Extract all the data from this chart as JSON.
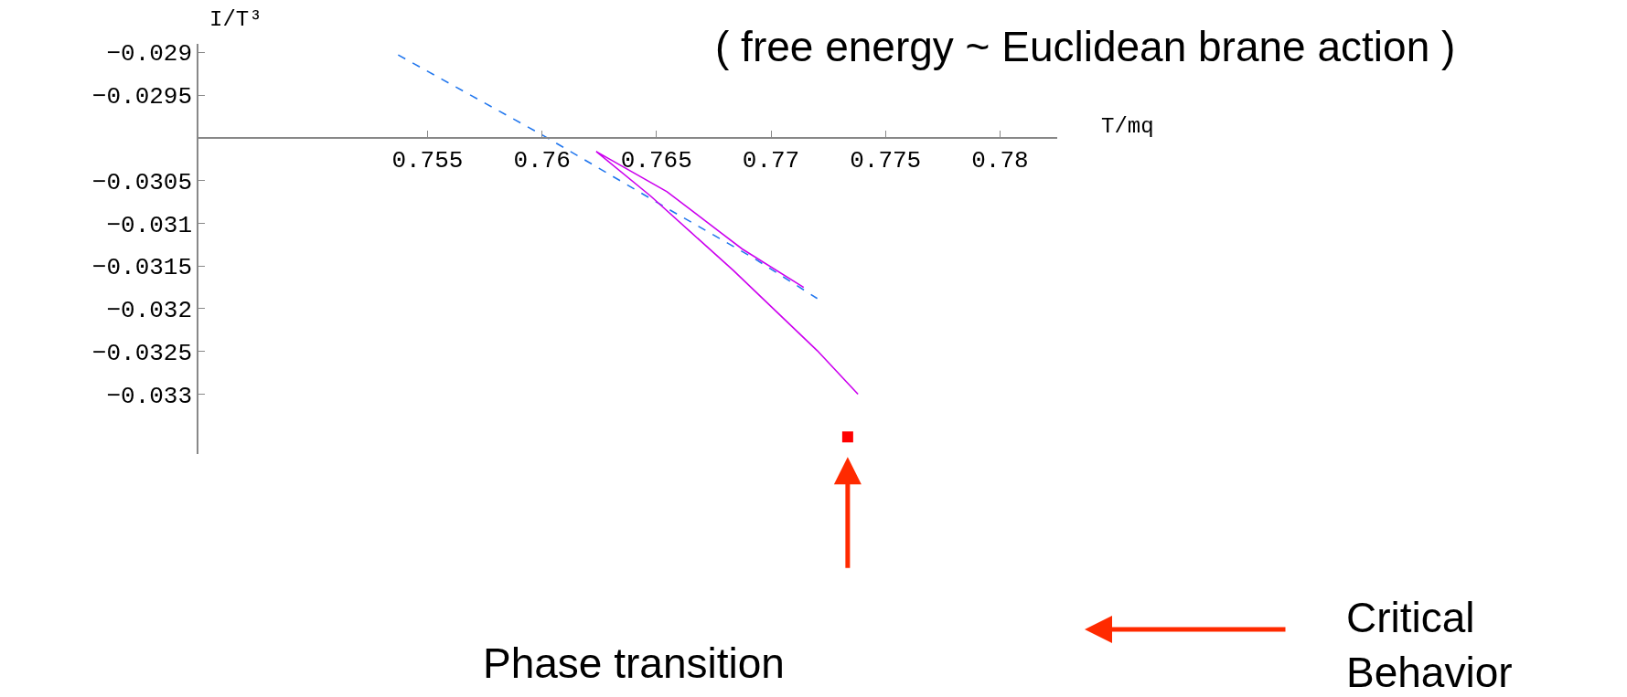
{
  "chart_data": {
    "type": "line",
    "title": "( free energy ~ Euclidean brane action )",
    "xlabel": "T/mq",
    "ylabel": "I/T³",
    "xlim": [
      0.745,
      0.7825
    ],
    "ylim": [
      -0.0337,
      -0.0289
    ],
    "xticks": [
      0.755,
      0.76,
      0.765,
      0.77,
      0.775,
      0.78
    ],
    "yticks": [
      -0.029,
      -0.0295,
      {
        "value": -0.03,
        "label": null
      },
      -0.0305,
      -0.031,
      -0.0315,
      -0.032,
      -0.0325,
      -0.033
    ],
    "series": [
      {
        "color": "#2277ee",
        "line_style": "dashed",
        "x": [
          0.75372,
          0.76004,
          0.7655,
          0.7692,
          0.77202
        ],
        "values": [
          -0.02903,
          -0.02997,
          -0.03083,
          -0.0314,
          -0.03188
        ]
      },
      {
        "color": "#cc00ee",
        "line_style": "solid",
        "x": [
          0.77143,
          0.76874,
          0.76546,
          0.76237,
          0.76474,
          0.76835,
          0.77202,
          0.7738
        ],
        "values": [
          -0.03175,
          -0.0313,
          -0.03063,
          -0.03016,
          -0.03068,
          -0.03155,
          -0.03249,
          -0.033
        ]
      },
      {
        "type": "scatter",
        "color": "#ff0000",
        "marker": "square",
        "x": [
          0.77335
        ],
        "values": [
          -0.0335
        ]
      }
    ],
    "annotations": [
      "Phase transition",
      "Critical\nBehavior"
    ]
  }
}
